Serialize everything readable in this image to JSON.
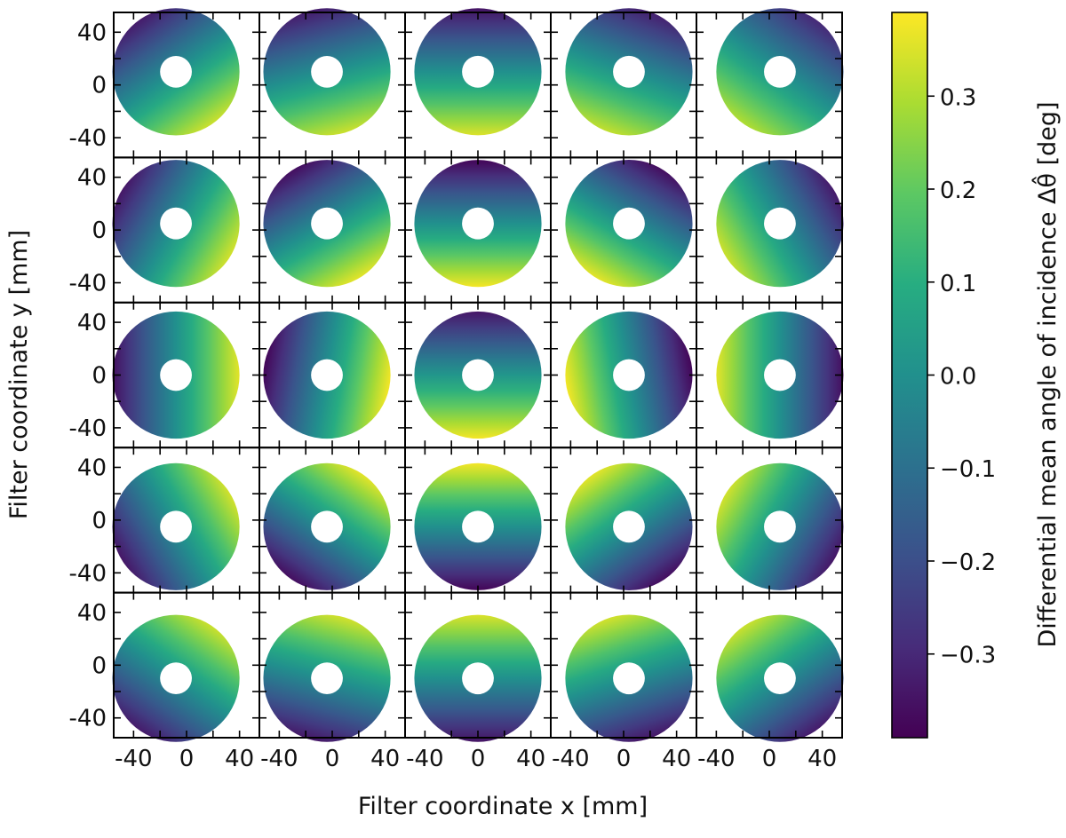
{
  "chart_data": {
    "type": "heatmap",
    "description_grid": "5x5 small multiples of annular filter maps",
    "rows": 5,
    "cols": 5,
    "xlabel": "Filter coordinate  x [mm]",
    "ylabel": "Filter coordinate  y [mm]",
    "colorbar_label": "Differential mean angle of incidence  Δθ̂ [deg]",
    "colormap": "viridis",
    "clim": [
      -0.39,
      0.39
    ],
    "colorbar_ticks": [
      {
        "value": 0.3,
        "label": "0.3"
      },
      {
        "value": 0.2,
        "label": "0.2"
      },
      {
        "value": 0.1,
        "label": "0.1"
      },
      {
        "value": 0.0,
        "label": "0.0"
      },
      {
        "value": -0.1,
        "label": "−0.1"
      },
      {
        "value": -0.2,
        "label": "−0.2"
      },
      {
        "value": -0.3,
        "label": "−0.3"
      }
    ],
    "xlim": [
      -55,
      55
    ],
    "ylim": [
      -55,
      55
    ],
    "x_tick_labels": [
      "-40",
      "0",
      "40"
    ],
    "x_tick_values": [
      -40,
      0,
      40
    ],
    "y_tick_labels": [
      "40",
      "0",
      "-40"
    ],
    "y_tick_values": [
      40,
      0,
      -40
    ],
    "annulus": {
      "outer_radius_mm": 48,
      "inner_radius_mm": 12
    },
    "panels": [
      {
        "row": 0,
        "col": 0,
        "center": [
          -8,
          10
        ],
        "gradient_angle_deg": -55,
        "amplitude": 0.33,
        "offset": 0.0
      },
      {
        "row": 0,
        "col": 1,
        "center": [
          -4,
          10
        ],
        "gradient_angle_deg": -75,
        "amplitude": 0.33,
        "offset": 0.0
      },
      {
        "row": 0,
        "col": 2,
        "center": [
          0,
          10
        ],
        "gradient_angle_deg": -90,
        "amplitude": 0.35,
        "offset": 0.0
      },
      {
        "row": 0,
        "col": 3,
        "center": [
          4,
          10
        ],
        "gradient_angle_deg": -110,
        "amplitude": 0.32,
        "offset": 0.0
      },
      {
        "row": 0,
        "col": 4,
        "center": [
          8,
          10
        ],
        "gradient_angle_deg": -125,
        "amplitude": 0.3,
        "offset": 0.0
      },
      {
        "row": 1,
        "col": 0,
        "center": [
          -8,
          5
        ],
        "gradient_angle_deg": -30,
        "amplitude": 0.34,
        "offset": 0.0
      },
      {
        "row": 1,
        "col": 1,
        "center": [
          -4,
          5
        ],
        "gradient_angle_deg": -60,
        "amplitude": 0.36,
        "offset": 0.0
      },
      {
        "row": 1,
        "col": 2,
        "center": [
          0,
          5
        ],
        "gradient_angle_deg": -90,
        "amplitude": 0.38,
        "offset": 0.0
      },
      {
        "row": 1,
        "col": 3,
        "center": [
          4,
          5
        ],
        "gradient_angle_deg": -120,
        "amplitude": 0.36,
        "offset": 0.0
      },
      {
        "row": 1,
        "col": 4,
        "center": [
          8,
          5
        ],
        "gradient_angle_deg": -150,
        "amplitude": 0.33,
        "offset": 0.0
      },
      {
        "row": 2,
        "col": 0,
        "center": [
          -8,
          0
        ],
        "gradient_angle_deg": 0,
        "amplitude": 0.36,
        "offset": 0.0
      },
      {
        "row": 2,
        "col": 1,
        "center": [
          -4,
          0
        ],
        "gradient_angle_deg": -10,
        "amplitude": 0.38,
        "offset": 0.0
      },
      {
        "row": 2,
        "col": 2,
        "center": [
          0,
          0
        ],
        "gradient_angle_deg": -90,
        "amplitude": 0.36,
        "offset": 0.02
      },
      {
        "row": 2,
        "col": 3,
        "center": [
          4,
          0
        ],
        "gradient_angle_deg": 190,
        "amplitude": 0.38,
        "offset": 0.0
      },
      {
        "row": 2,
        "col": 4,
        "center": [
          8,
          0
        ],
        "gradient_angle_deg": 180,
        "amplitude": 0.36,
        "offset": 0.0
      },
      {
        "row": 3,
        "col": 0,
        "center": [
          -8,
          -5
        ],
        "gradient_angle_deg": 30,
        "amplitude": 0.34,
        "offset": 0.0
      },
      {
        "row": 3,
        "col": 1,
        "center": [
          -4,
          -5
        ],
        "gradient_angle_deg": 55,
        "amplitude": 0.36,
        "offset": 0.0
      },
      {
        "row": 3,
        "col": 2,
        "center": [
          0,
          -5
        ],
        "gradient_angle_deg": 90,
        "amplitude": 0.38,
        "offset": 0.0
      },
      {
        "row": 3,
        "col": 3,
        "center": [
          4,
          -5
        ],
        "gradient_angle_deg": 125,
        "amplitude": 0.36,
        "offset": 0.0
      },
      {
        "row": 3,
        "col": 4,
        "center": [
          8,
          -5
        ],
        "gradient_angle_deg": 150,
        "amplitude": 0.34,
        "offset": 0.0
      },
      {
        "row": 4,
        "col": 0,
        "center": [
          -8,
          -10
        ],
        "gradient_angle_deg": 55,
        "amplitude": 0.33,
        "offset": 0.0
      },
      {
        "row": 4,
        "col": 1,
        "center": [
          -4,
          -10
        ],
        "gradient_angle_deg": 75,
        "amplitude": 0.34,
        "offset": 0.0
      },
      {
        "row": 4,
        "col": 2,
        "center": [
          0,
          -10
        ],
        "gradient_angle_deg": 90,
        "amplitude": 0.35,
        "offset": 0.0
      },
      {
        "row": 4,
        "col": 3,
        "center": [
          4,
          -10
        ],
        "gradient_angle_deg": 108,
        "amplitude": 0.34,
        "offset": 0.0
      },
      {
        "row": 4,
        "col": 4,
        "center": [
          8,
          -10
        ],
        "gradient_angle_deg": 125,
        "amplitude": 0.33,
        "offset": 0.0
      }
    ]
  }
}
